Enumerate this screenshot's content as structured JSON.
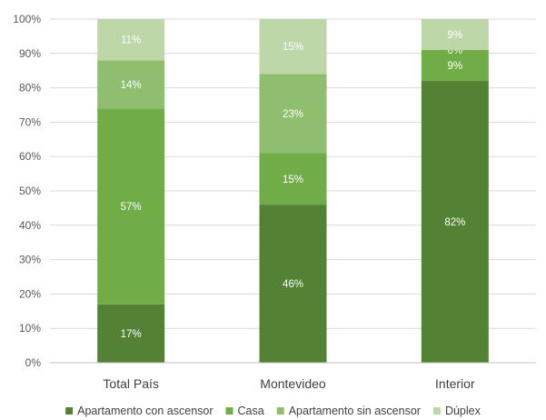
{
  "chart_data": {
    "type": "bar",
    "stacked": true,
    "categories": [
      "Total País",
      "Montevideo",
      "Interior"
    ],
    "series": [
      {
        "name": "Apartamento con ascensor",
        "values": [
          17,
          46,
          82
        ],
        "color": "#548235",
        "labels": [
          "17%",
          "46%",
          "82%"
        ]
      },
      {
        "name": "Casa",
        "values": [
          57,
          15,
          9
        ],
        "color": "#70ad47",
        "labels": [
          "57%",
          "15%",
          "9%"
        ]
      },
      {
        "name": "Apartamento sin ascensor",
        "values": [
          14,
          23,
          0
        ],
        "color": "#8fbf6e",
        "labels": [
          "14%",
          "23%",
          "0%"
        ]
      },
      {
        "name": "Dúplex",
        "values": [
          11,
          15,
          9
        ],
        "color": "#bdd7a8",
        "labels": [
          "11%",
          "15%",
          "9%"
        ]
      }
    ],
    "yticks": [
      "0%",
      "10%",
      "20%",
      "30%",
      "40%",
      "50%",
      "60%",
      "70%",
      "80%",
      "90%",
      "100%"
    ],
    "ylim": [
      0,
      100
    ],
    "grid": true,
    "legend": "bottom"
  }
}
